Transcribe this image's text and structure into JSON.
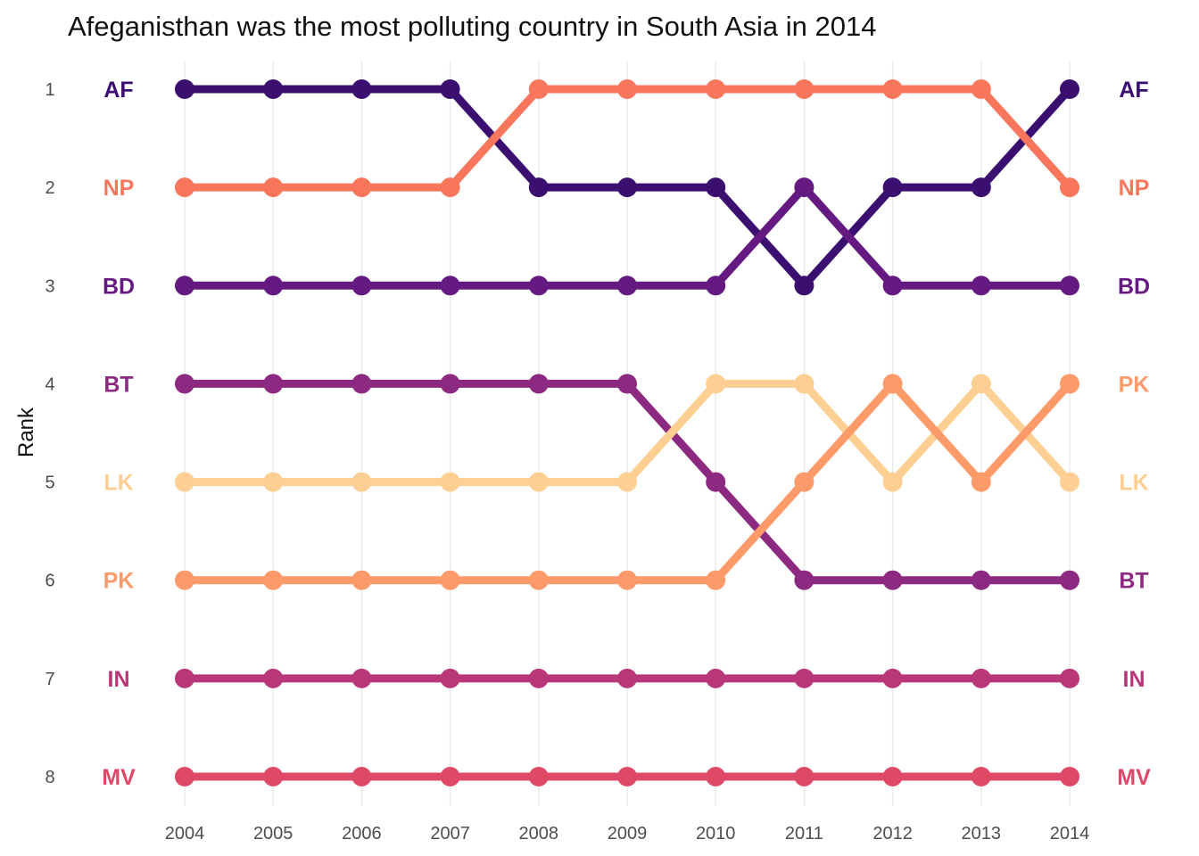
{
  "chart_data": {
    "type": "line",
    "title": "Afeganisthan was the most polluting country in South Asia in 2014",
    "xlabel": "",
    "ylabel": "Rank",
    "x": [
      2004,
      2005,
      2006,
      2007,
      2008,
      2009,
      2010,
      2011,
      2012,
      2013,
      2014
    ],
    "ylim": [
      1,
      8
    ],
    "y_reversed": true,
    "y_ticks": [
      1,
      2,
      3,
      4,
      5,
      6,
      7,
      8
    ],
    "grid": "vertical",
    "legend": "none",
    "series": [
      {
        "name": "AF",
        "color": "#3b0f70",
        "values": [
          1,
          1,
          1,
          1,
          2,
          2,
          2,
          3,
          2,
          2,
          1
        ]
      },
      {
        "name": "NP",
        "color": "#f8765c",
        "values": [
          2,
          2,
          2,
          2,
          1,
          1,
          1,
          1,
          1,
          1,
          2
        ]
      },
      {
        "name": "BD",
        "color": "#641a80",
        "values": [
          3,
          3,
          3,
          3,
          3,
          3,
          3,
          2,
          3,
          3,
          3
        ]
      },
      {
        "name": "BT",
        "color": "#8c2981",
        "values": [
          4,
          4,
          4,
          4,
          4,
          4,
          5,
          6,
          6,
          6,
          6
        ]
      },
      {
        "name": "LK",
        "color": "#fecf92",
        "values": [
          5,
          5,
          5,
          5,
          5,
          5,
          4,
          4,
          5,
          4,
          5
        ]
      },
      {
        "name": "PK",
        "color": "#fd9a6a",
        "values": [
          6,
          6,
          6,
          6,
          6,
          6,
          6,
          5,
          4,
          5,
          4
        ]
      },
      {
        "name": "IN",
        "color": "#b73779",
        "values": [
          7,
          7,
          7,
          7,
          7,
          7,
          7,
          7,
          7,
          7,
          7
        ]
      },
      {
        "name": "MV",
        "color": "#de4968",
        "values": [
          8,
          8,
          8,
          8,
          8,
          8,
          8,
          8,
          8,
          8,
          8
        ]
      }
    ]
  }
}
